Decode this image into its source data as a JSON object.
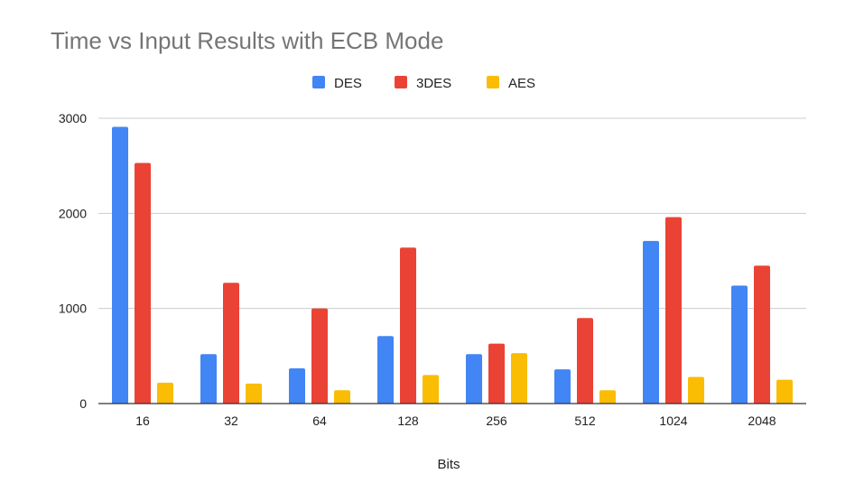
{
  "chart_data": {
    "type": "bar",
    "title": "Time vs Input Results with ECB Mode",
    "xlabel": "Bits",
    "ylabel": "",
    "categories": [
      "16",
      "32",
      "64",
      "128",
      "256",
      "512",
      "1024",
      "2048"
    ],
    "series": [
      {
        "name": "DES",
        "color": "#4285f4",
        "values": [
          2910,
          520,
          370,
          710,
          520,
          360,
          1710,
          1240
        ]
      },
      {
        "name": "3DES",
        "color": "#ea4335",
        "values": [
          2530,
          1270,
          1000,
          1640,
          630,
          900,
          1960,
          1450
        ]
      },
      {
        "name": "AES",
        "color": "#fbbc04",
        "values": [
          220,
          210,
          140,
          300,
          530,
          140,
          280,
          250
        ]
      }
    ],
    "yticks": [
      "0",
      "1000",
      "2000",
      "3000"
    ],
    "ylim": [
      0,
      3000
    ],
    "grid": true,
    "legend_position": "top-center"
  }
}
